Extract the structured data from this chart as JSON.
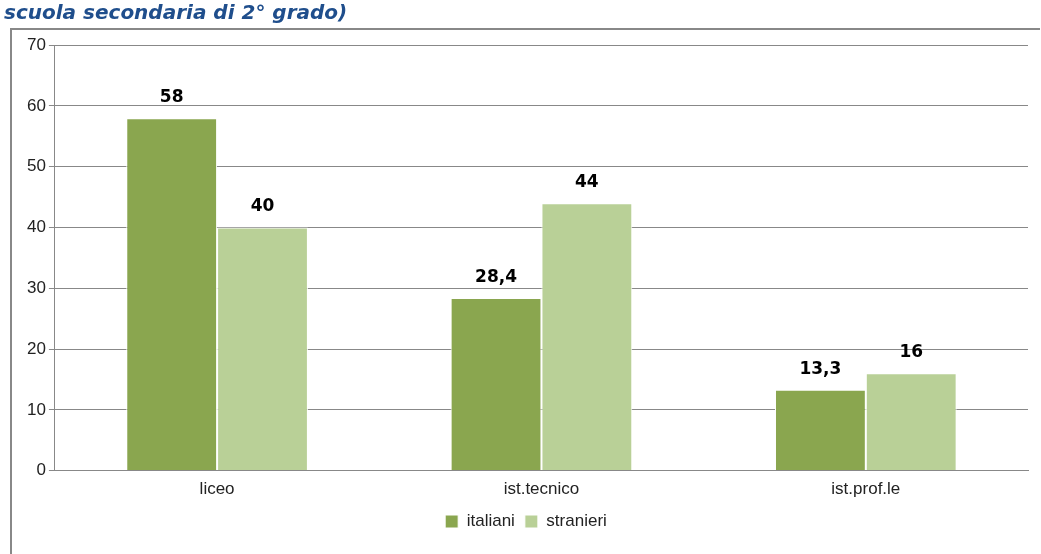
{
  "chart_data": {
    "type": "bar",
    "title": "scuola secondaria di 2° grado)",
    "categories": [
      "liceo",
      "ist.tecnico",
      "ist.prof.le"
    ],
    "series": [
      {
        "name": "italiani",
        "color": "#8aa64f",
        "values": [
          58,
          28.4,
          13.3
        ],
        "value_labels": [
          "58",
          "28,4",
          "13,3"
        ]
      },
      {
        "name": "stranieri",
        "color": "#b9d097",
        "values": [
          40,
          44,
          16
        ],
        "value_labels": [
          "40",
          "44",
          "16"
        ]
      }
    ],
    "ylim": [
      0,
      70
    ],
    "yticks": [
      0,
      10,
      20,
      30,
      40,
      50,
      60,
      70
    ],
    "grid": "y",
    "legend": "bottom"
  }
}
